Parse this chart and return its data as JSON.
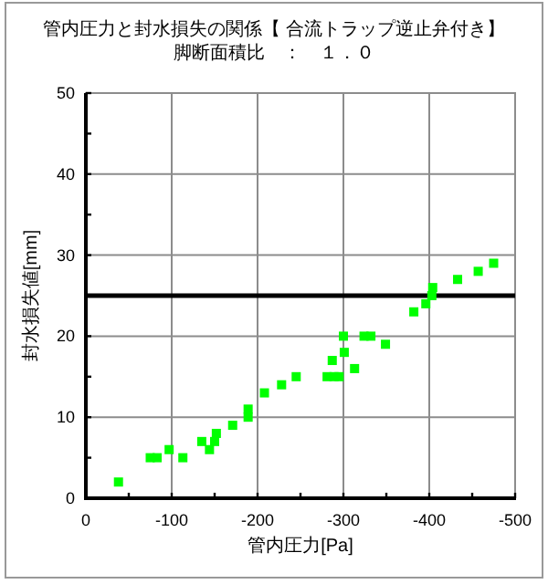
{
  "chart_data": {
    "type": "scatter",
    "title": "管内圧力と封水損失の関係【 合流トラップ逆止弁付き】",
    "subtitle": "脚断面積比　：　１．０",
    "xlabel": "管内圧力[Pa]",
    "ylabel": "封水損失値[mm]",
    "x": [
      -38,
      -75,
      -83,
      -97,
      -113,
      -135,
      -144,
      -150,
      -152,
      -171,
      -189,
      -189,
      -208,
      -228,
      -245,
      -281,
      -289,
      -295,
      -287,
      -301,
      -300,
      -313,
      -324,
      -332,
      -349,
      -382,
      -396,
      -403,
      -404,
      -433,
      -457,
      -475
    ],
    "values": [
      2,
      5,
      5,
      6,
      5,
      7,
      6,
      7,
      8,
      9,
      10,
      11,
      13,
      14,
      15,
      15,
      15,
      15,
      17,
      18,
      20,
      16,
      20,
      20,
      19,
      23,
      24,
      25,
      26,
      27,
      28,
      29
    ],
    "color": "#00ff00",
    "marker": "square",
    "xlim": [
      0,
      -500
    ],
    "xticks": [
      0,
      {
        "value": -50,
        "label": null
      },
      -100,
      {
        "value": -150,
        "label": null
      },
      -200,
      {
        "value": -250,
        "label": null
      },
      -300,
      {
        "value": -350,
        "label": null
      },
      -400,
      {
        "value": -450,
        "label": null
      },
      -500
    ],
    "ylim": [
      0,
      50
    ],
    "yticks": [
      0,
      {
        "value": 5,
        "label": null
      },
      10,
      {
        "value": 15,
        "label": null
      },
      20,
      {
        "value": 25,
        "label": null
      },
      30,
      {
        "value": 35,
        "label": null
      },
      40,
      {
        "value": 45,
        "label": null
      },
      50
    ],
    "grid": true,
    "ref_lines": [
      {
        "axis": "y",
        "value": 25,
        "color": "#000000"
      }
    ]
  }
}
